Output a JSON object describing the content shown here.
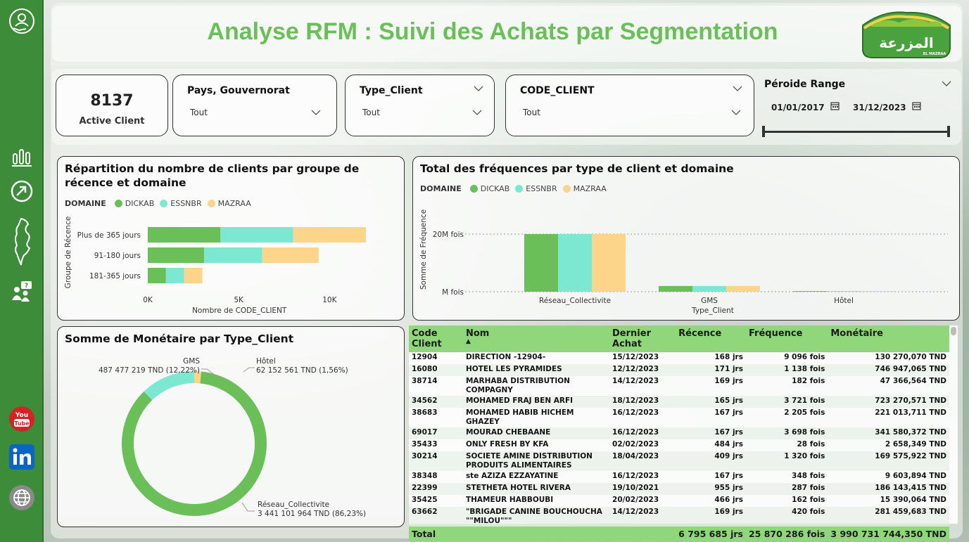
{
  "header": {
    "title": "Analyse RFM : Suivi des Achats par Segmentation",
    "logo_text": "المزرعة",
    "logo_subtext": "EL MAZRAA"
  },
  "colors": {
    "dickab": "#6bbf59",
    "essnbr": "#7de8d2",
    "mazraa": "#fdd58a",
    "accent": "#6bbf59",
    "sidebar": "#3d8c3a"
  },
  "kpi": {
    "value": "8137",
    "label": "Active Client"
  },
  "filters": [
    {
      "title": "Pays, Gouvernorat",
      "value": "Tout"
    },
    {
      "title": "Type_Client",
      "value": "Tout"
    },
    {
      "title": "CODE_CLIENT",
      "value": "Tout"
    }
  ],
  "period": {
    "title": "Péroide Range",
    "start": "01/01/2017",
    "end": "31/12/2023"
  },
  "sidebar_icons": [
    "customer-care-icon",
    "bar-chart-icon",
    "trend-icon",
    "tunisia-map-icon",
    "faq-icon",
    "youtube-icon",
    "linkedin-icon",
    "globe-icon"
  ],
  "recency_chart": {
    "title": "Répartition du nombre de clients par groupe de récence et domaine",
    "legend_title": "DOMAINE",
    "ylabel": "Groupe de Récence",
    "xlabel": "Nombre de CODE_CLIENT"
  },
  "frequency_chart": {
    "title": "Total des fréquences par type de client et domaine",
    "legend_title": "DOMAINE",
    "ylabel": "Somme de Fréquence",
    "xlabel": "Type_Client"
  },
  "donut_chart": {
    "title": "Somme de Monétaire par Type_Client",
    "labels": [
      {
        "name": "GMS",
        "value": "487 477 219 TND (12,22%)"
      },
      {
        "name": "Hôtel",
        "value": "62 152 561 TND (1,56%)"
      },
      {
        "name": "Réseau_Collectivite",
        "value": "3 441 101 964 TND (86,23%)"
      }
    ]
  },
  "table": {
    "columns": [
      "Code Client",
      "Nom",
      "Dernier Achat",
      "Récence",
      "Fréquence",
      "Monétaire"
    ],
    "rows": [
      [
        "12904",
        "DIRECTION -12904-",
        "15/12/2023",
        "168 jrs",
        "9 096 fois",
        "130 270,070 TND"
      ],
      [
        "16080",
        "HOTEL LES PYRAMIDES",
        "12/12/2023",
        "171 jrs",
        "1 138 fois",
        "746 947,065 TND"
      ],
      [
        "38714",
        "MARHABA DISTRIBUTION COMPAGNY",
        "14/12/2023",
        "169 jrs",
        "182 fois",
        "47 366,564 TND"
      ],
      [
        "34562",
        "MOHAMED FRAJ BEN ARFI",
        "18/12/2023",
        "165 jrs",
        "3 721 fois",
        "723 270,571 TND"
      ],
      [
        "38683",
        "MOHAMED HABIB HICHEM GHAZEY",
        "16/12/2023",
        "167 jrs",
        "2 205 fois",
        "221 013,711 TND"
      ],
      [
        "69017",
        "MOURAD CHEBAANE",
        "16/12/2023",
        "167 jrs",
        "3 698 fois",
        "341 580,372 TND"
      ],
      [
        "35433",
        "ONLY FRESH BY KFA",
        "02/02/2023",
        "484 jrs",
        "28 fois",
        "2 658,349 TND"
      ],
      [
        "30214",
        "SOCIETE AMINE DISTRIBUTION PRODUITS ALIMENTAIRES",
        "18/04/2023",
        "409 jrs",
        "1 320 fois",
        "169 575,922 TND"
      ],
      [
        "38348",
        "ste AZIZA EZZAYATINE",
        "16/12/2023",
        "167 jrs",
        "348 fois",
        "9 603,894 TND"
      ],
      [
        "22399",
        "STETHETA HOTEL RIVERA",
        "19/10/2021",
        "955 jrs",
        "287 fois",
        "186 143,415 TND"
      ],
      [
        "35425",
        "THAMEUR HABBOUBI",
        "20/02/2023",
        "466 jrs",
        "162 fois",
        "15 390,064 TND"
      ],
      [
        "63662",
        "\"BRIGADE CANINE BOUCHOUCHA \"\"MILOU\"\"\"",
        "14/12/2023",
        "169 jrs",
        "420 fois",
        "281 459,683 TND"
      ]
    ],
    "total": {
      "label": "Total",
      "recence": "6 795 685 jrs",
      "frequence": "25 870 286 fois",
      "monetaire": "3 990 731 744,350 TND"
    }
  },
  "chart_data": [
    {
      "type": "bar",
      "orientation": "horizontal",
      "stacked": true,
      "title": "Répartition du nombre de clients par groupe de récence et domaine",
      "categories": [
        "Plus de 365 jours",
        "91-180 jours",
        "181-365 jours"
      ],
      "series": [
        {
          "name": "DICKAB",
          "values": [
            4000,
            3100,
            1000
          ]
        },
        {
          "name": "ESSNBR",
          "values": [
            4000,
            3200,
            1000
          ]
        },
        {
          "name": "MAZRAA",
          "values": [
            4000,
            3100,
            1000
          ]
        }
      ],
      "xlabel": "Nombre de CODE_CLIENT",
      "ylabel": "Groupe de Récence",
      "xlim": [
        0,
        12000
      ],
      "xticks": [
        0,
        5000,
        10000
      ],
      "xtick_labels": [
        "0K",
        "5K",
        "10K"
      ],
      "legend": [
        "DICKAB",
        "ESSNBR",
        "MAZRAA"
      ]
    },
    {
      "type": "bar",
      "orientation": "vertical",
      "stacked": false,
      "title": "Total des fréquences par type de client et domaine",
      "categories": [
        "Réseau_Collectivite",
        "GMS",
        "Hôtel"
      ],
      "series": [
        {
          "name": "DICKAB",
          "values": [
            20000000,
            2000000,
            100000
          ]
        },
        {
          "name": "ESSNBR",
          "values": [
            20000000,
            2000000,
            100000
          ]
        },
        {
          "name": "MAZRAA",
          "values": [
            20000000,
            2000000,
            100000
          ]
        }
      ],
      "xlabel": "Type_Client",
      "ylabel": "Somme de Fréquence",
      "ylim": [
        0,
        24000000
      ],
      "ytick_labels": [
        "M fois",
        "20M fois"
      ],
      "legend": [
        "DICKAB",
        "ESSNBR",
        "MAZRAA"
      ]
    },
    {
      "type": "pie",
      "donut": true,
      "title": "Somme de Monétaire par Type_Client",
      "categories": [
        "Réseau_Collectivite",
        "GMS",
        "Hôtel"
      ],
      "values": [
        3441101964,
        487477219,
        62152561
      ],
      "percentages": [
        86.23,
        12.22,
        1.56
      ]
    }
  ]
}
